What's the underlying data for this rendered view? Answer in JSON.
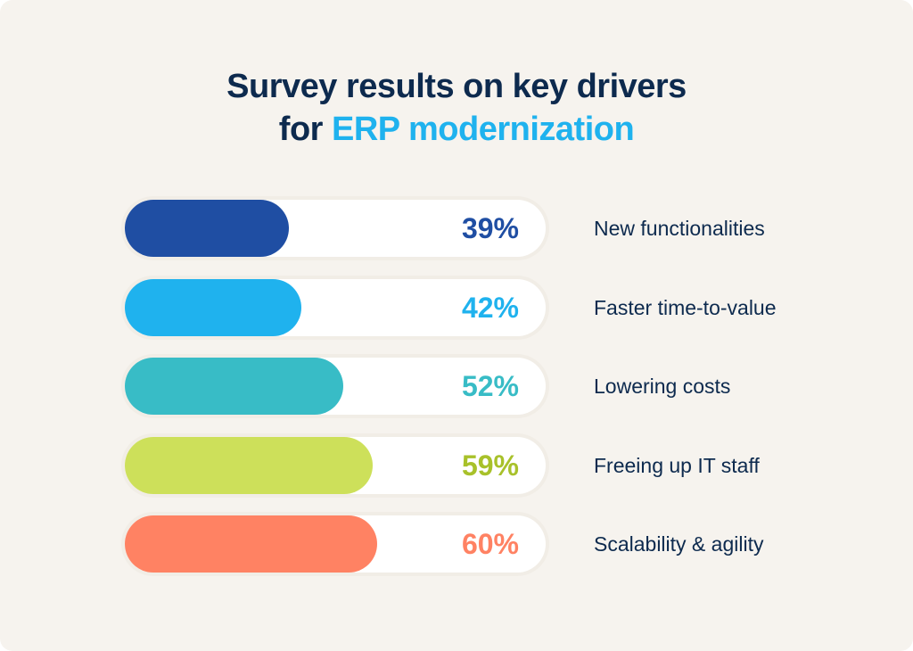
{
  "chart_data": {
    "type": "bar",
    "orientation": "horizontal",
    "title_line1": "Survey results on key drivers",
    "title_line2_prefix": "for",
    "title_line2_accent": "ERP modernization",
    "xlim": [
      0,
      100
    ],
    "grid": false,
    "categories": [
      "New functionalities",
      "Faster time-to-value",
      "Lowering costs",
      "Freeing up IT staff",
      "Scalability & agility"
    ],
    "values": [
      39,
      42,
      52,
      59,
      60
    ],
    "labels": [
      "39%",
      "42%",
      "52%",
      "59%",
      "60%"
    ],
    "colors": [
      "#1f4ea3",
      "#1fb2ee",
      "#38bcc6",
      "#cde05a",
      "#ff8263"
    ],
    "label_colors": [
      "#1f4ea3",
      "#1fb2ee",
      "#38bcc6",
      "#a8c12a",
      "#ff8263"
    ]
  },
  "colors": {
    "title": "#0d2a4e",
    "accent": "#1fb2ee",
    "background": "#f6f3ee"
  }
}
